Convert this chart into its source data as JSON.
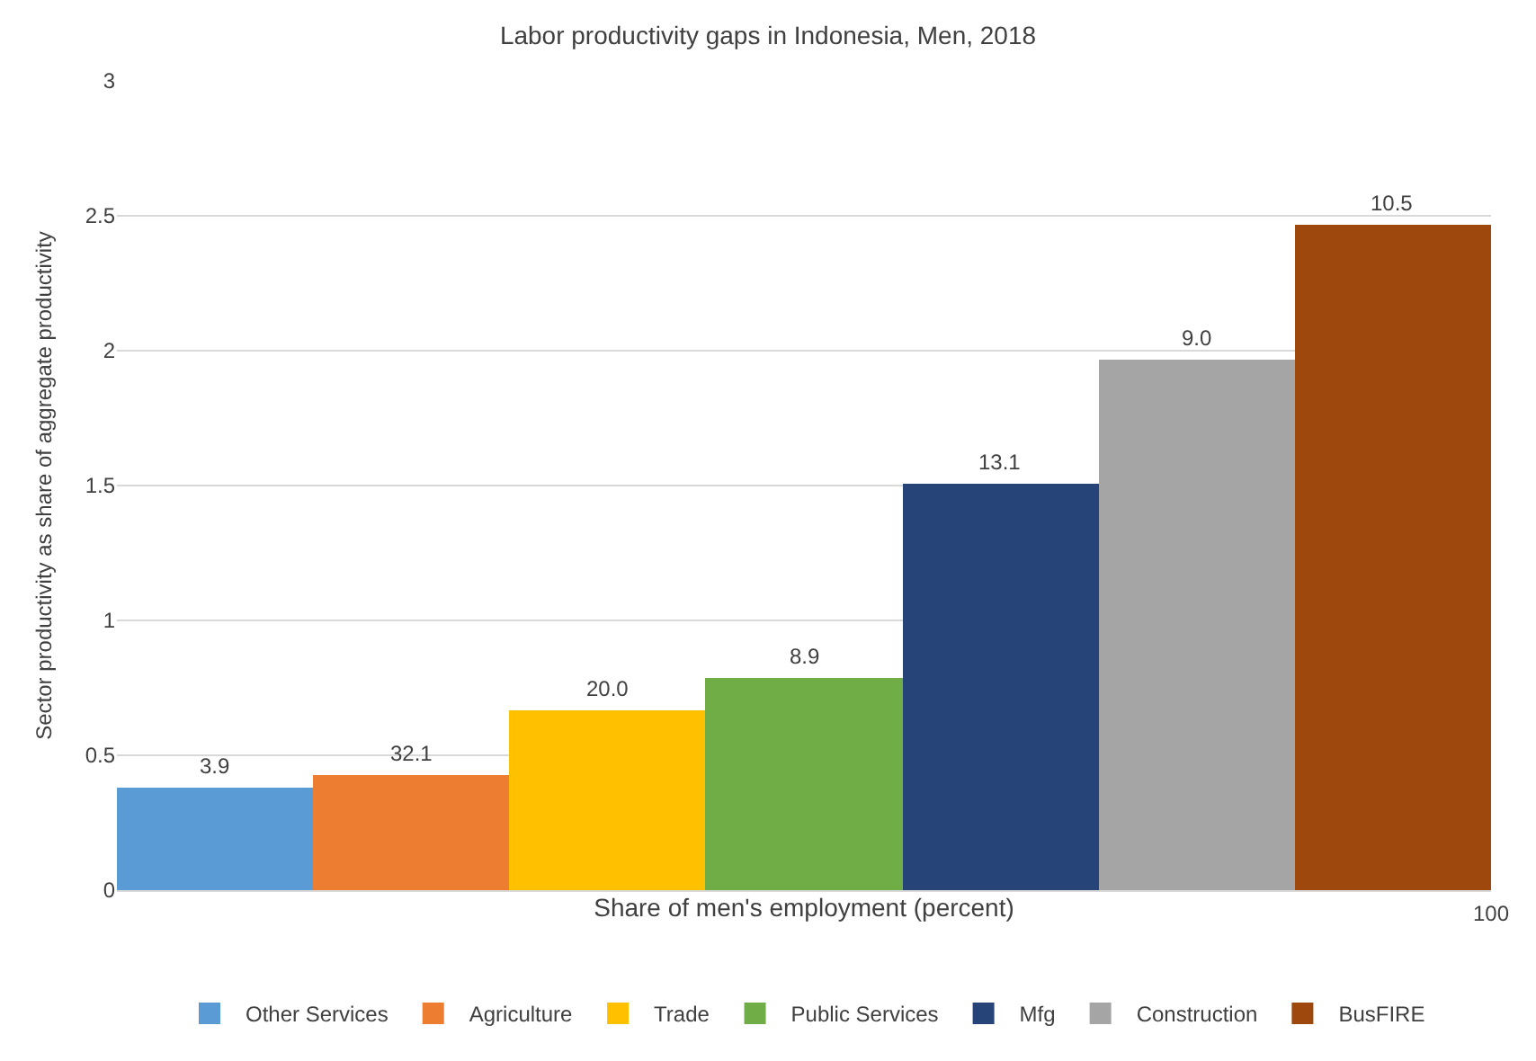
{
  "chart_data": {
    "type": "bar",
    "title": "Labor productivity gaps in Indonesia, Men, 2018",
    "xlabel": "Share of men's employment (percent)",
    "ylabel": "Sector productivity as share of aggregate productivity",
    "categories": [
      null,
      null,
      null,
      null,
      null,
      null,
      null
    ],
    "series": [
      {
        "name": "Other Services",
        "color": "#5b9bd5",
        "values": [
          0.38,
          null,
          null,
          null,
          null,
          null,
          null
        ]
      },
      {
        "name": "Agriculture",
        "color": "#ed7d31",
        "values": [
          null,
          0.43,
          null,
          null,
          null,
          null,
          null
        ]
      },
      {
        "name": "Trade",
        "color": "#ffc000",
        "values": [
          null,
          null,
          0.67,
          null,
          null,
          null,
          null
        ]
      },
      {
        "name": "Public Services",
        "color": "#70ad47",
        "values": [
          null,
          null,
          null,
          0.79,
          null,
          null,
          null
        ]
      },
      {
        "name": "Mfg",
        "color": "#264478",
        "values": [
          null,
          null,
          null,
          null,
          1.51,
          null,
          null
        ]
      },
      {
        "name": "Construction",
        "color": "#a5a5a5",
        "values": [
          null,
          null,
          null,
          null,
          null,
          1.97,
          null
        ]
      },
      {
        "name": "BusFIRE",
        "color": "#9e480e",
        "values": [
          null,
          null,
          null,
          null,
          null,
          null,
          2.47
        ]
      }
    ],
    "annotations": [
      {
        "text": "3.9",
        "y": 0.38
      },
      {
        "text": "32.1",
        "y": 0.43
      },
      {
        "text": "20.0",
        "y": 0.67
      },
      {
        "text": "8.9",
        "y": 0.79
      },
      {
        "text": "13.1",
        "y": 1.51
      },
      {
        "text": "9.0",
        "y": 1.97
      },
      {
        "text": "10.5",
        "y": 2.47
      },
      "100"
    ],
    "ylim": [
      0,
      3
    ],
    "yticks": [
      0,
      0.5,
      1,
      1.5,
      2,
      2.5,
      3
    ],
    "grid": "y",
    "legend": "bottom"
  }
}
